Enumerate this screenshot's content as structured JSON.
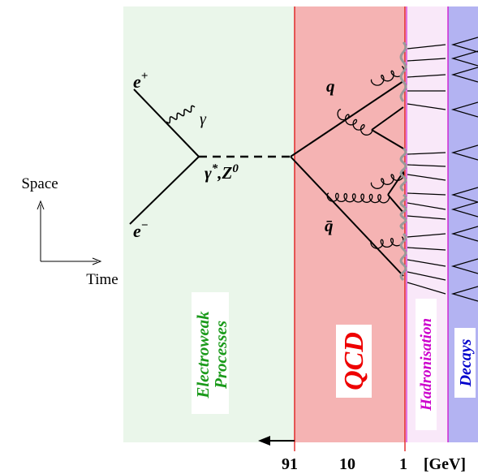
{
  "axes": {
    "space": "Space",
    "time": "Time"
  },
  "particles": {
    "e_plus": {
      "symbol": "e",
      "charge": "+"
    },
    "e_minus": {
      "symbol": "e",
      "charge": "−"
    },
    "photon": "γ",
    "boson": {
      "gamma": "γ",
      "star": "*",
      "z": ",Z",
      "z_sup": "0"
    },
    "quark": "q",
    "antiquark": "q̄"
  },
  "regions": {
    "electroweak": [
      "Electroweak",
      "Processes"
    ],
    "qcd": "QCD",
    "hadronisation": "Hadronisation",
    "decays": "Decays"
  },
  "scale": {
    "ticks": [
      "91",
      "10",
      "1"
    ],
    "unit": "[GeV]"
  }
}
